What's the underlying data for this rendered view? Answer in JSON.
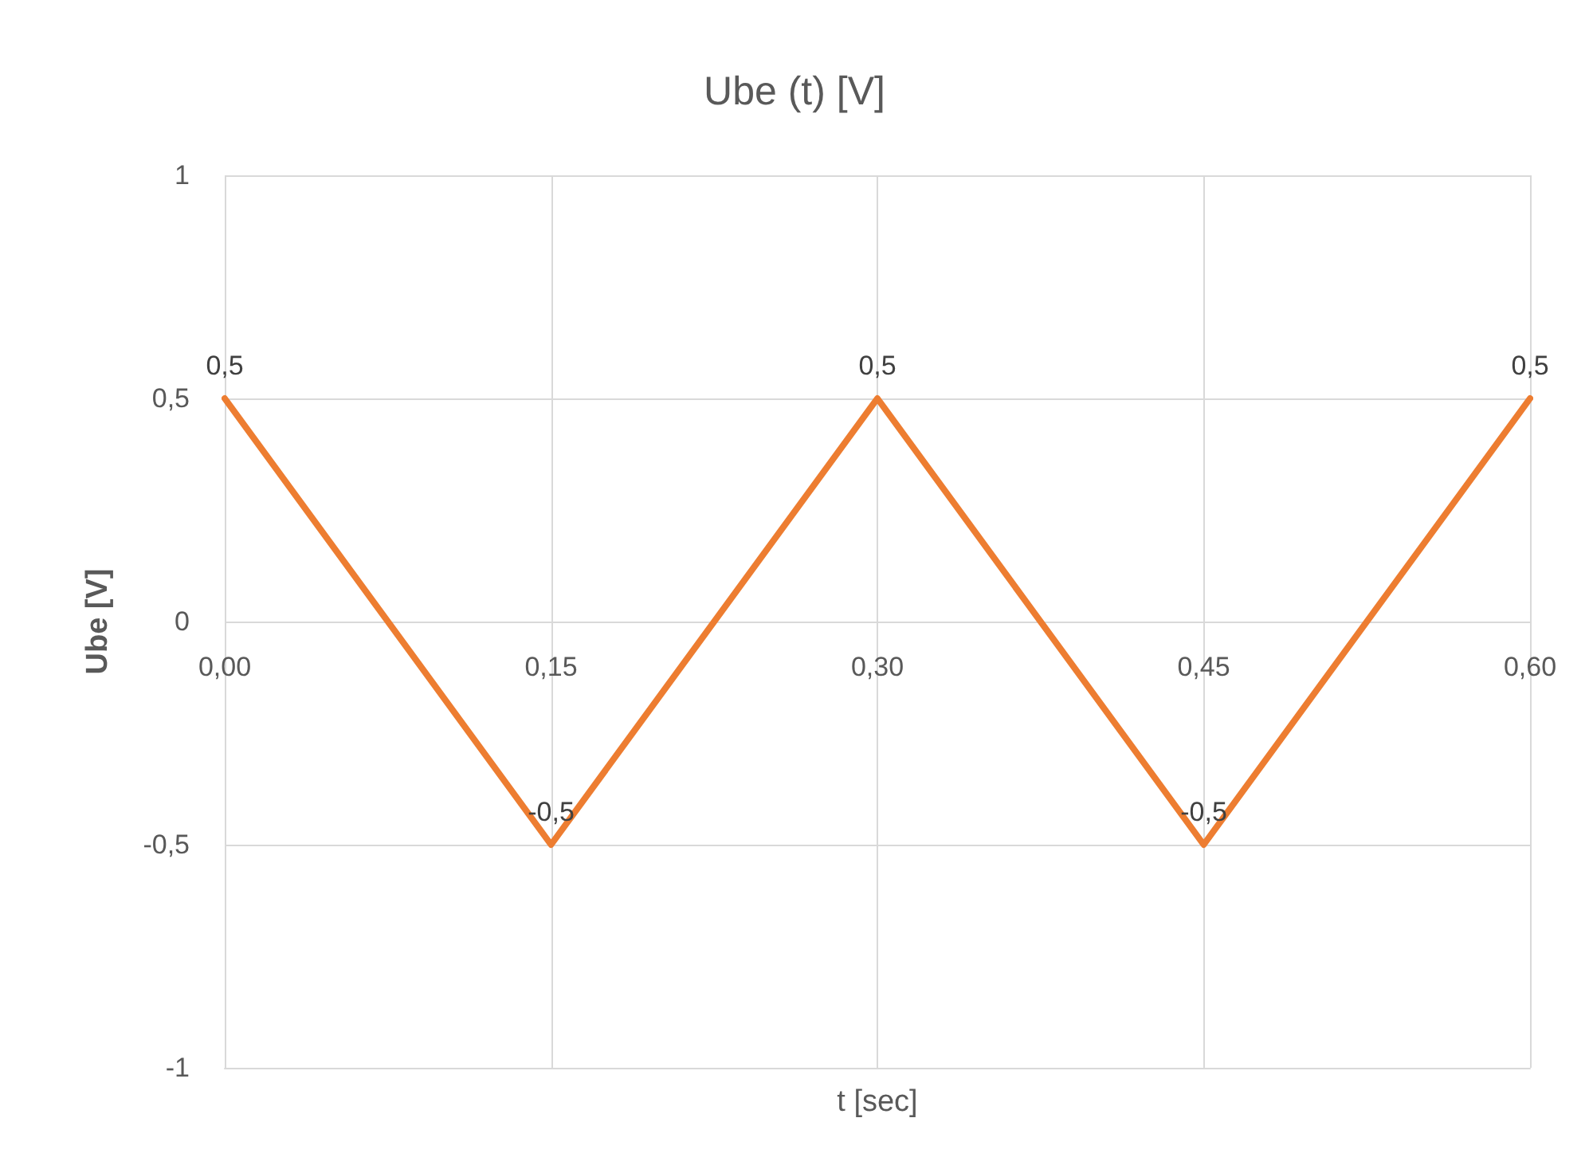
{
  "chart_data": {
    "type": "line",
    "title": "Ube (t) [V]",
    "xlabel": "t [sec]",
    "ylabel": "Ube [V]",
    "x": [
      0,
      0.15,
      0.3,
      0.45,
      0.6
    ],
    "series": [
      {
        "color": "#ed7d31",
        "values": [
          0.5,
          -0.5,
          0.5,
          -0.5,
          0.5
        ],
        "value_labels": [
          "0,5",
          "-0,5",
          "0,5",
          "-0,5",
          "0,5"
        ]
      }
    ],
    "xlim": [
      0,
      0.6
    ],
    "xticks": [
      {
        "value": 0,
        "label": "0,00"
      },
      {
        "value": 0.15,
        "label": "0,15"
      },
      {
        "value": 0.3,
        "label": "0,30"
      },
      {
        "value": 0.45,
        "label": "0,45"
      },
      {
        "value": 0.6,
        "label": "0,60"
      }
    ],
    "ylim": [
      -1,
      1
    ],
    "yticks": [
      -1,
      {
        "value": -0.5,
        "label": "-0,5"
      },
      0,
      {
        "value": 0.5,
        "label": "0,5"
      },
      1
    ],
    "grid": true,
    "marker": "none",
    "line_style": "solid"
  }
}
